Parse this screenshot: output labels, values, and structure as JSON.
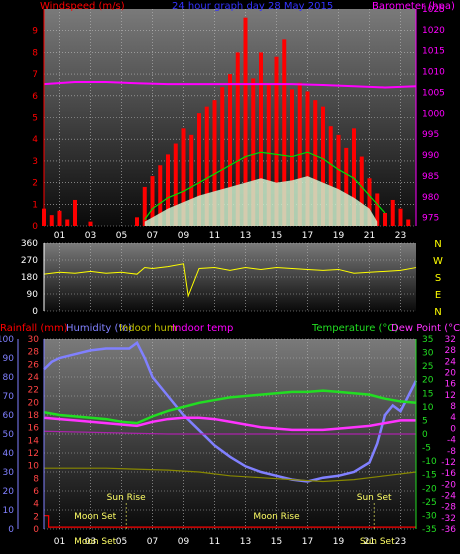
{
  "chart_data": [
    {
      "type": "line",
      "title": "24 hour graph day 28 May 2015",
      "ylabel_left": "Windspeed (m/s)",
      "ylabel_right": "Barometer (hpa)",
      "x_ticks": [
        "01",
        "03",
        "05",
        "07",
        "09",
        "11",
        "13",
        "15",
        "17",
        "19",
        "21",
        "23"
      ],
      "y_ticks_left": [
        0,
        1,
        2,
        3,
        4,
        5,
        6,
        7,
        8,
        9
      ],
      "y_ticks_right": [
        975,
        980,
        985,
        990,
        995,
        1000,
        1005,
        1010,
        1015,
        1020,
        1025
      ],
      "ylim_left": [
        0,
        10
      ],
      "ylim_right": [
        973,
        1025
      ],
      "grid": true,
      "series": [
        {
          "name": "Windspeed",
          "color": "#ff0000",
          "style": "gust bars",
          "hours": [
            0,
            0.5,
            1,
            1.5,
            2,
            3,
            4,
            5,
            6,
            6.5,
            7,
            7.5,
            8,
            8.5,
            9,
            9.5,
            10,
            10.5,
            11,
            11.5,
            12,
            12.5,
            13,
            13.5,
            14,
            14.5,
            15,
            15.5,
            16,
            16.5,
            17,
            17.5,
            18,
            18.5,
            19,
            19.5,
            20,
            20.5,
            21,
            21.5,
            22,
            22.5,
            23,
            23.5
          ],
          "values": [
            0.8,
            0.5,
            0.7,
            0.3,
            1.2,
            0.2,
            0,
            0,
            0.4,
            1.8,
            2.3,
            2.8,
            3.3,
            3.8,
            4.5,
            4.2,
            5.2,
            5.5,
            5.8,
            6.4,
            7,
            8,
            9.6,
            6.8,
            8,
            6.5,
            7.8,
            8.6,
            6.3,
            6.6,
            6.2,
            5.8,
            5.5,
            4.6,
            4.2,
            3.6,
            4.5,
            3.2,
            2.2,
            1.5,
            0.6,
            1.2,
            0.8,
            0.3
          ]
        },
        {
          "name": "Wind average",
          "color": "#00dd00",
          "style": "line",
          "hours": [
            6.5,
            7,
            8,
            9,
            10,
            11,
            12,
            13,
            14,
            15,
            16,
            17,
            18,
            19,
            20,
            21,
            22
          ],
          "values": [
            0.3,
            0.8,
            1.3,
            1.6,
            2,
            2.4,
            2.8,
            3.2,
            3.4,
            3.3,
            3.2,
            3.4,
            3.1,
            2.6,
            2.2,
            1.4,
            0.6
          ]
        },
        {
          "name": "Wind lull",
          "color": "#cceecc",
          "style": "fill",
          "hours": [
            6.5,
            7,
            8,
            9,
            10,
            11,
            12,
            13,
            14,
            15,
            16,
            17,
            18,
            19,
            20,
            21,
            21.5
          ],
          "values": [
            0.2,
            0.4,
            0.8,
            1.1,
            1.4,
            1.6,
            1.8,
            2,
            2.2,
            2,
            2.1,
            2.3,
            2,
            1.7,
            1.3,
            0.8,
            0.2
          ]
        },
        {
          "name": "Barometer",
          "color": "#ff00ff",
          "style": "line",
          "hours": [
            0,
            2,
            4,
            6,
            8,
            10,
            12,
            14,
            16,
            18,
            20,
            22,
            24
          ],
          "values": [
            1007,
            1007.5,
            1007.5,
            1007.2,
            1007,
            1007,
            1007,
            1007,
            1007,
            1006.8,
            1006.5,
            1006.2,
            1006.5
          ]
        }
      ]
    },
    {
      "type": "line",
      "title": "",
      "y_ticks_left": [
        0,
        90,
        180,
        270,
        360
      ],
      "y_labels_right": [
        "N",
        "W",
        "S",
        "E",
        "N"
      ],
      "ylim": [
        0,
        360
      ],
      "grid": true,
      "series": [
        {
          "name": "Wind direction",
          "color": "#ffff00",
          "hours": [
            0,
            1,
            2,
            3,
            4,
            5,
            6,
            6.5,
            7,
            8,
            9,
            9.3,
            10,
            11,
            12,
            13,
            14,
            15,
            16,
            17,
            18,
            19,
            20,
            21,
            22,
            23,
            24
          ],
          "values": [
            195,
            205,
            200,
            210,
            200,
            205,
            195,
            230,
            225,
            235,
            250,
            80,
            225,
            230,
            215,
            230,
            220,
            230,
            225,
            220,
            215,
            220,
            200,
            205,
            210,
            215,
            230
          ]
        }
      ]
    },
    {
      "type": "line",
      "title": "",
      "ylabel_left_1": "Rainfall (mm)",
      "ylabel_left_2": "Humidity (%)",
      "ylabel_left_3": "Indoor hum",
      "ylabel_left_4": "Indoor temp",
      "ylabel_right_1": "Temperature (°C)",
      "ylabel_right_2": "Dew Point (°C)",
      "y_ticks_humidity": [
        0,
        10,
        20,
        30,
        40,
        50,
        60,
        70,
        80,
        90,
        100
      ],
      "y_ticks_rain": [
        0,
        2,
        4,
        6,
        8,
        10,
        12,
        14,
        16,
        18,
        20,
        22,
        24,
        26,
        28,
        30
      ],
      "y_ticks_temp": [
        -35,
        -30,
        -25,
        -20,
        -15,
        -10,
        -5,
        0,
        5,
        10,
        15,
        20,
        25,
        30,
        35
      ],
      "y_ticks_dew": [
        -36,
        -32,
        -28,
        -24,
        -20,
        -16,
        -12,
        -8,
        -4,
        0,
        4,
        8,
        12,
        16,
        20,
        24,
        28,
        32
      ],
      "x_ticks": [
        "01",
        "03",
        "05",
        "07",
        "09",
        "11",
        "13",
        "15",
        "17",
        "19",
        "21",
        "23"
      ],
      "ylim_humidity": [
        0,
        100
      ],
      "ylim_temp": [
        -35,
        35
      ],
      "annotations": {
        "sun_rise": "Sun Rise",
        "sun_set": "Sun Set",
        "moon_set": "Moon Set",
        "moon_rise": "Moon Rise",
        "bottom_left": "Moon Set",
        "bottom_right": "Sun Set"
      },
      "grid": true,
      "series": [
        {
          "name": "Humidity",
          "color": "#8080ff",
          "axis": "humidity",
          "hours": [
            0,
            0.5,
            1,
            2,
            3,
            4,
            5,
            5.5,
            6,
            6.5,
            7,
            8,
            9,
            10,
            11,
            12,
            13,
            14,
            15,
            16,
            17,
            18,
            19,
            20,
            21,
            21.5,
            22,
            22.5,
            23,
            23.5,
            24
          ],
          "values": [
            84,
            88,
            90,
            92,
            94,
            95,
            95,
            95,
            98,
            90,
            80,
            70,
            60,
            52,
            44,
            38,
            33,
            30,
            28,
            26,
            25,
            27,
            28,
            30,
            35,
            45,
            60,
            65,
            62,
            70,
            78
          ]
        },
        {
          "name": "Temperature",
          "color": "#22dd22",
          "axis": "temp",
          "hours": [
            0,
            1,
            2,
            3,
            4,
            5,
            6,
            7,
            8,
            9,
            10,
            11,
            12,
            13,
            14,
            15,
            16,
            17,
            18,
            19,
            20,
            21,
            22,
            23,
            24
          ],
          "values": [
            8,
            7,
            6.5,
            6,
            5.5,
            4.5,
            4,
            6.5,
            8.5,
            10,
            11.5,
            12.5,
            13.5,
            14,
            14.5,
            15,
            15.5,
            15.5,
            16,
            15.5,
            15,
            14.5,
            13,
            12,
            11.5
          ]
        },
        {
          "name": "Dew Point",
          "color": "#ff33ff",
          "axis": "temp",
          "hours": [
            0,
            1,
            2,
            3,
            4,
            5,
            6,
            7,
            8,
            9,
            10,
            11,
            12,
            13,
            14,
            15,
            16,
            17,
            18,
            19,
            20,
            21,
            22,
            23,
            24
          ],
          "values": [
            6,
            5.5,
            5,
            4.5,
            4,
            3.5,
            3,
            4.5,
            5.5,
            6,
            6,
            5.5,
            4.5,
            3.5,
            2.5,
            2,
            1.5,
            1.5,
            1.5,
            2,
            2.5,
            3,
            4,
            5,
            5
          ]
        },
        {
          "name": "Indoor temp",
          "color": "#aa22aa",
          "axis": "temp",
          "hours": [
            0,
            4,
            8,
            12,
            16,
            20,
            24
          ],
          "values": [
            1,
            0.5,
            0,
            0,
            0,
            0,
            0
          ]
        },
        {
          "name": "Indoor hum",
          "color": "#888800",
          "axis": "humidity",
          "hours": [
            0,
            4,
            8,
            10,
            12,
            14,
            16,
            18,
            20,
            22,
            24
          ],
          "values": [
            32,
            32,
            31,
            30,
            28,
            27,
            26,
            25,
            26,
            28,
            30
          ]
        },
        {
          "name": "Rainfall",
          "color": "#ff0000",
          "axis": "humidity",
          "hours": [
            0,
            0.3,
            0.3,
            24
          ],
          "values": [
            7,
            7,
            1,
            1
          ]
        }
      ]
    }
  ]
}
